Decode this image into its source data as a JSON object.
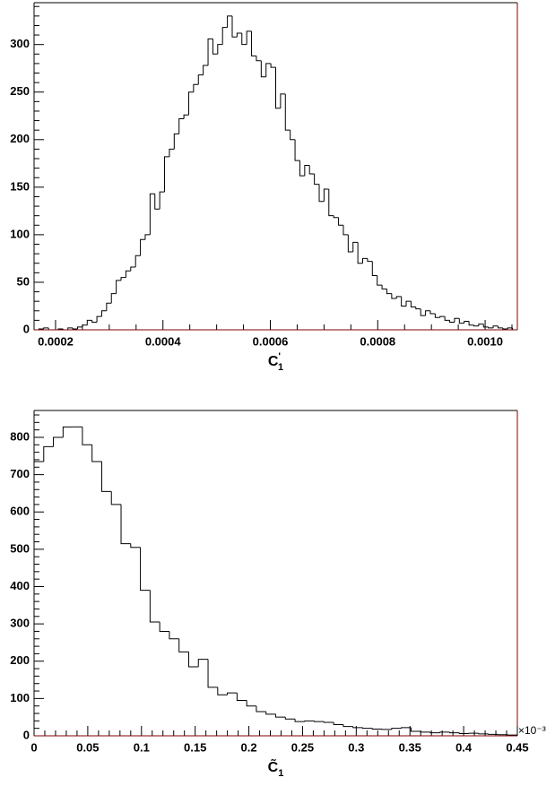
{
  "chart_data": [
    {
      "type": "histogram",
      "xlabel": "C",
      "xlabel_sup": "'",
      "xlabel_sub": "1",
      "color": "#000000",
      "axis_color": "#800000",
      "bins": [
        0.00016,
        0.000169,
        0.000178,
        0.000187,
        0.000196,
        0.000205,
        0.000214,
        0.000223,
        0.000232,
        0.000241,
        0.00025,
        0.000259,
        0.000268,
        0.000277,
        0.000286,
        0.000295,
        0.000304,
        0.000313,
        0.000322,
        0.000331,
        0.00034,
        0.000349,
        0.000358,
        0.000367,
        0.000376,
        0.000385,
        0.000394,
        0.000403,
        0.000412,
        0.000421,
        0.00043,
        0.000439,
        0.000448,
        0.000457,
        0.000466,
        0.000475,
        0.000484,
        0.000493,
        0.000502,
        0.000511,
        0.00052,
        0.000529,
        0.000538,
        0.000547,
        0.000556,
        0.000565,
        0.000574,
        0.000583,
        0.000592,
        0.000601,
        0.00061,
        0.000619,
        0.000628,
        0.000637,
        0.000646,
        0.000655,
        0.000664,
        0.000673,
        0.000682,
        0.000691,
        0.0007,
        0.000709,
        0.000718,
        0.000727,
        0.000736,
        0.000745,
        0.000754,
        0.000763,
        0.000772,
        0.000781,
        0.00079,
        0.000799,
        0.000808,
        0.000817,
        0.000826,
        0.000835,
        0.000844,
        0.000853,
        0.000862,
        0.000871,
        0.00088,
        0.000889,
        0.000898,
        0.000907,
        0.000916,
        0.000925,
        0.000934,
        0.000943,
        0.000952,
        0.000961,
        0.00097,
        0.000979,
        0.000988,
        0.000997,
        0.001006,
        0.001015,
        0.001024,
        0.001033,
        0.001042,
        0.001051,
        0.00106
      ],
      "values": [
        0,
        1,
        2,
        0,
        0,
        1,
        0,
        2,
        1,
        3,
        5,
        10,
        8,
        14,
        20,
        28,
        38,
        52,
        55,
        62,
        66,
        78,
        95,
        100,
        143,
        127,
        145,
        182,
        190,
        206,
        222,
        226,
        250,
        258,
        268,
        278,
        306,
        290,
        300,
        318,
        330,
        308,
        312,
        300,
        314,
        288,
        283,
        266,
        280,
        276,
        233,
        248,
        210,
        200,
        178,
        162,
        173,
        164,
        153,
        135,
        148,
        120,
        118,
        110,
        100,
        82,
        92,
        70,
        75,
        72,
        57,
        47,
        43,
        38,
        33,
        35,
        25,
        30,
        24,
        22,
        15,
        20,
        17,
        13,
        14,
        10,
        8,
        12,
        7,
        9,
        5,
        4,
        6,
        3,
        2,
        4,
        2,
        1,
        2,
        0
      ],
      "xlim": [
        0.00016,
        0.00106
      ],
      "xticks": [
        0.0002,
        0.0004,
        0.0006,
        0.0008,
        {
          "value": 0.001,
          "label": "0.0010"
        }
      ],
      "ylim": [
        0,
        344
      ],
      "yticks": [
        0,
        50,
        100,
        150,
        200,
        250,
        300
      ]
    },
    {
      "type": "histogram",
      "xlabel": "C̃",
      "xlabel_sub": "1",
      "multiplier": "×10⁻³",
      "color": "#000000",
      "axis_color": "#800000",
      "bins": [
        0,
        0.009,
        0.018,
        0.027,
        0.036,
        0.045,
        0.054,
        0.063,
        0.072,
        0.081,
        0.09,
        0.099,
        0.108,
        0.117,
        0.126,
        0.135,
        0.144,
        0.153,
        0.162,
        0.171,
        0.18,
        0.189,
        0.198,
        0.207,
        0.216,
        0.225,
        0.234,
        0.243,
        0.252,
        0.261,
        0.27,
        0.279,
        0.288,
        0.297,
        0.306,
        0.315,
        0.324,
        0.333,
        0.342,
        0.351,
        0.36,
        0.369,
        0.378,
        0.387,
        0.396,
        0.405,
        0.414,
        0.423,
        0.432,
        0.441,
        0.45
      ],
      "values": [
        735,
        775,
        800,
        828,
        828,
        780,
        735,
        655,
        620,
        515,
        505,
        390,
        305,
        280,
        260,
        225,
        185,
        205,
        130,
        110,
        115,
        95,
        80,
        65,
        58,
        50,
        45,
        38,
        40,
        38,
        36,
        30,
        25,
        22,
        20,
        18,
        17,
        20,
        22,
        12,
        10,
        8,
        10,
        8,
        6,
        7,
        5,
        4,
        3,
        2
      ],
      "xlim": [
        0,
        0.45
      ],
      "xticks": [
        0,
        0.05,
        0.1,
        0.15,
        0.2,
        0.25,
        0.3,
        0.35,
        0.4,
        0.45
      ],
      "ylim": [
        0,
        872
      ],
      "yticks": [
        0,
        100,
        200,
        300,
        400,
        500,
        600,
        700,
        800
      ]
    }
  ]
}
